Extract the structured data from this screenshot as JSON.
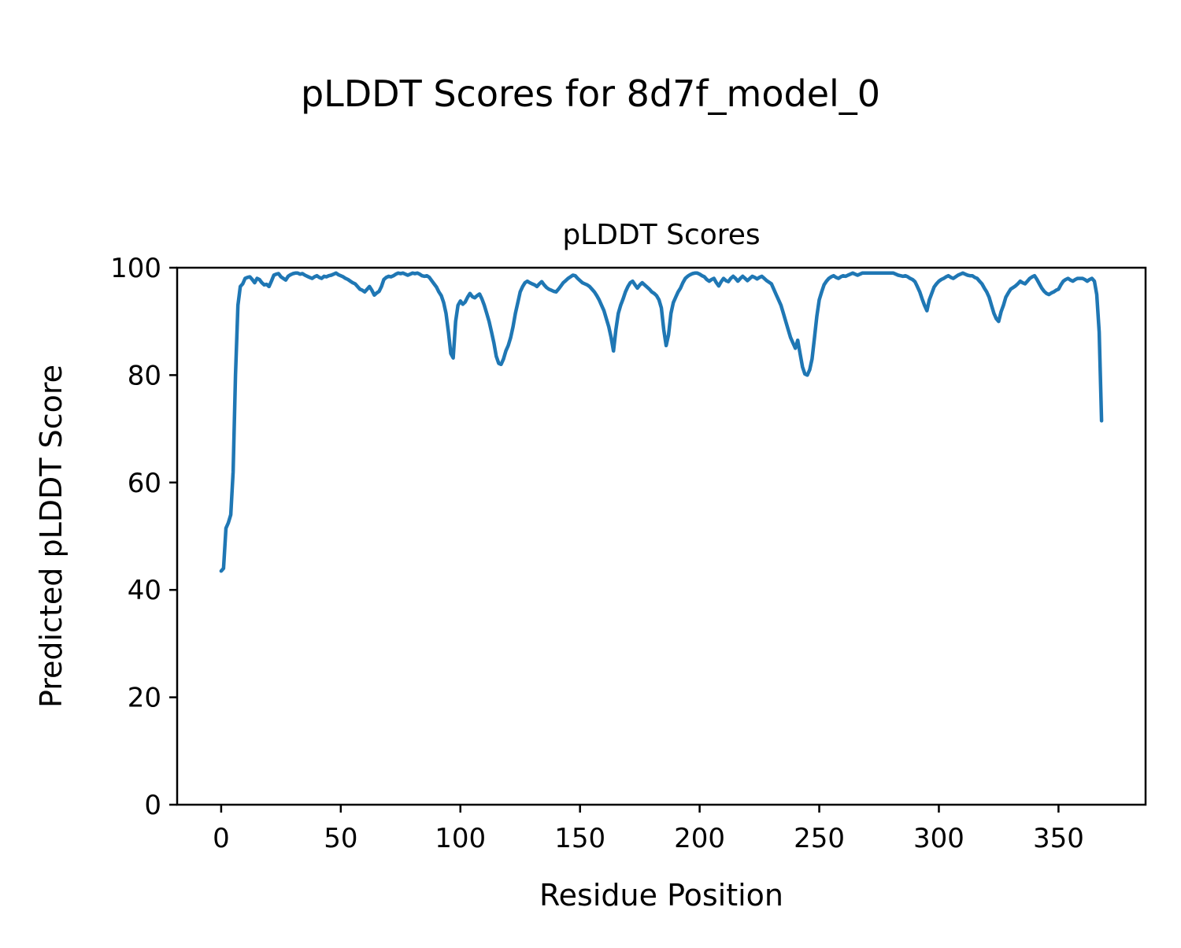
{
  "figure": {
    "background": "#ffffff",
    "frame_color": "#000000"
  },
  "chart_data": {
    "type": "line",
    "suptitle": "pLDDT Scores for 8d7f_model_0",
    "title": "pLDDT Scores",
    "xlabel": "Residue Position",
    "ylabel": "Predicted pLDDT Score",
    "line_color": "#1f77b4",
    "line_width": 4.5,
    "grid": false,
    "legend": "none",
    "xlim": [
      -18.4,
      386.4
    ],
    "ylim": [
      0,
      100
    ],
    "xticks": [
      0,
      50,
      100,
      150,
      200,
      250,
      300,
      350
    ],
    "yticks": [
      0,
      20,
      40,
      60,
      80,
      100
    ],
    "series": [
      {
        "name": "pLDDT",
        "x_start": 0,
        "x_step": 1,
        "y": [
          43.5,
          44,
          51.5,
          52.5,
          54,
          62,
          80,
          93,
          96.5,
          97,
          98,
          98.2,
          98.3,
          97.8,
          97.2,
          98,
          97.8,
          97.2,
          96.8,
          96.9,
          96.5,
          97.5,
          98.6,
          98.8,
          98.9,
          98.3,
          98,
          97.7,
          98.4,
          98.7,
          98.9,
          99,
          99,
          98.8,
          98.9,
          98.6,
          98.4,
          98.2,
          98,
          98.3,
          98.5,
          98.2,
          98,
          98.4,
          98.3,
          98.5,
          98.6,
          98.8,
          99,
          98.7,
          98.5,
          98.3,
          98,
          97.8,
          97.5,
          97.2,
          97,
          96.5,
          96,
          95.8,
          95.5,
          96,
          96.5,
          95.8,
          94.9,
          95.3,
          95.6,
          96.5,
          97.8,
          98.2,
          98.4,
          98.3,
          98.5,
          98.8,
          99,
          98.9,
          99,
          98.8,
          98.6,
          98.8,
          99,
          98.9,
          99,
          98.8,
          98.5,
          98.4,
          98.5,
          98.2,
          97.6,
          97,
          96.4,
          95.5,
          94.8,
          93.5,
          91.5,
          88,
          84,
          83.2,
          90,
          93,
          93.8,
          93.2,
          93.6,
          94.5,
          95.2,
          94.6,
          94.4,
          94.8,
          95.1,
          94.2,
          93,
          91.5,
          90,
          88,
          86,
          83.5,
          82.2,
          82,
          83,
          84.5,
          85.5,
          87,
          89,
          91.5,
          93.5,
          95.5,
          96.5,
          97.2,
          97.5,
          97.2,
          97,
          96.8,
          96.5,
          97,
          97.4,
          96.8,
          96.3,
          96,
          95.8,
          95.6,
          95.5,
          96,
          96.6,
          97.2,
          97.6,
          98,
          98.3,
          98.6,
          98.5,
          98,
          97.6,
          97.2,
          97,
          96.8,
          96.5,
          96,
          95.5,
          94.8,
          94,
          93,
          92,
          90.5,
          89,
          87,
          84.5,
          88.5,
          91.5,
          93,
          94.2,
          95.5,
          96.5,
          97.2,
          97.5,
          96.8,
          96.2,
          96.8,
          97.2,
          96.8,
          96.4,
          96,
          95.5,
          95.2,
          94.8,
          94,
          92.5,
          88.5,
          85.5,
          87.5,
          91.5,
          93.5,
          94.5,
          95.5,
          96.2,
          97.2,
          98,
          98.4,
          98.7,
          98.9,
          99,
          99,
          98.8,
          98.5,
          98.3,
          97.8,
          97.5,
          97.8,
          98,
          97.2,
          96.6,
          97.4,
          98,
          97.6,
          97.4,
          98,
          98.4,
          98,
          97.5,
          98,
          98.4,
          98,
          97.6,
          98,
          98.4,
          98.2,
          97.9,
          98.2,
          98.4,
          98,
          97.6,
          97.3,
          97,
          96,
          95,
          94,
          93,
          91.5,
          90,
          88.5,
          87,
          86,
          85,
          86.5,
          84,
          81.5,
          80.2,
          80,
          81,
          83,
          87,
          91,
          94,
          95.5,
          96.8,
          97.5,
          98,
          98.3,
          98.5,
          98.2,
          98,
          98.3,
          98.5,
          98.4,
          98.6,
          98.8,
          99,
          98.8,
          98.6,
          98.8,
          99,
          99,
          99,
          99,
          99,
          99,
          99,
          99,
          99,
          99,
          99,
          99,
          99,
          99,
          98.8,
          98.6,
          98.5,
          98.4,
          98.5,
          98.3,
          98,
          97.8,
          97.4,
          96.5,
          95.5,
          94.2,
          93,
          92,
          94,
          95.2,
          96.4,
          97,
          97.5,
          97.8,
          98,
          98.3,
          98.5,
          98.2,
          98,
          98.3,
          98.6,
          98.8,
          99,
          98.8,
          98.6,
          98.5,
          98.5,
          98.2,
          98,
          97.5,
          97,
          96.2,
          95.5,
          94.5,
          93,
          91.5,
          90.5,
          90,
          91.8,
          93,
          94.5,
          95.3,
          96,
          96.3,
          96.6,
          97,
          97.5,
          97.2,
          97,
          97.5,
          98,
          98.3,
          98.5,
          97.8,
          97,
          96.2,
          95.6,
          95.2,
          95,
          95.3,
          95.5,
          95.8,
          96,
          96.8,
          97.5,
          97.8,
          98,
          97.7,
          97.5,
          97.8,
          98,
          98,
          98,
          97.8,
          97.5,
          97.8,
          98,
          97.5,
          95,
          88,
          71.5
        ]
      }
    ]
  }
}
